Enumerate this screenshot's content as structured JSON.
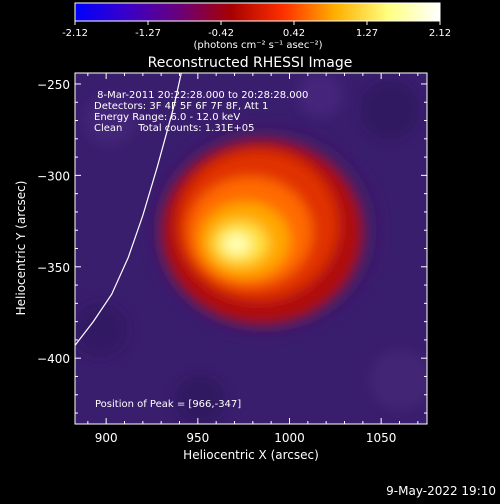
{
  "chart_data": {
    "type": "heatmap",
    "title": "Reconstructed RHESSI Image",
    "xlabel": "Heliocentric X (arcsec)",
    "ylabel": "Heliocentric Y (arcsec)",
    "xlim": [
      883,
      1075
    ],
    "ylim": [
      -436,
      -244
    ],
    "x_ticks": [
      900,
      950,
      1000,
      1050
    ],
    "y_ticks": [
      -250,
      -300,
      -350,
      -400
    ],
    "peak": {
      "x": 966,
      "y": -347
    },
    "colorbar": {
      "ticks": [
        "-2.12",
        "-1.27",
        "-0.42",
        "0.42",
        "1.27",
        "2.12"
      ],
      "units": "(photons cm⁻² s⁻¹ asec⁻²)",
      "colors": [
        "#0000ff",
        "#3a00c8",
        "#6a007a",
        "#a80000",
        "#ff3000",
        "#ffb000",
        "#ffff80",
        "#ffffff"
      ]
    },
    "annotations": [
      " 8-Mar-2011 20:22:28.000 to 20:28:28.000",
      "Detectors: 3F 4F 5F 6F 7F 8F, Att 1",
      "Energy Range: 6.0 - 12.0 keV",
      "Clean     Total counts: 1.31E+05"
    ],
    "peak_label": "Position of Peak = [966,-347]",
    "limb_curve": [
      [
        883,
        -393
      ],
      [
        893,
        -380
      ],
      [
        903,
        -365
      ],
      [
        912,
        -345
      ],
      [
        920,
        -322
      ],
      [
        928,
        -295
      ],
      [
        937,
        -262
      ],
      [
        941,
        -244
      ]
    ]
  },
  "footer": {
    "date": "9-May-2022 19:10"
  }
}
